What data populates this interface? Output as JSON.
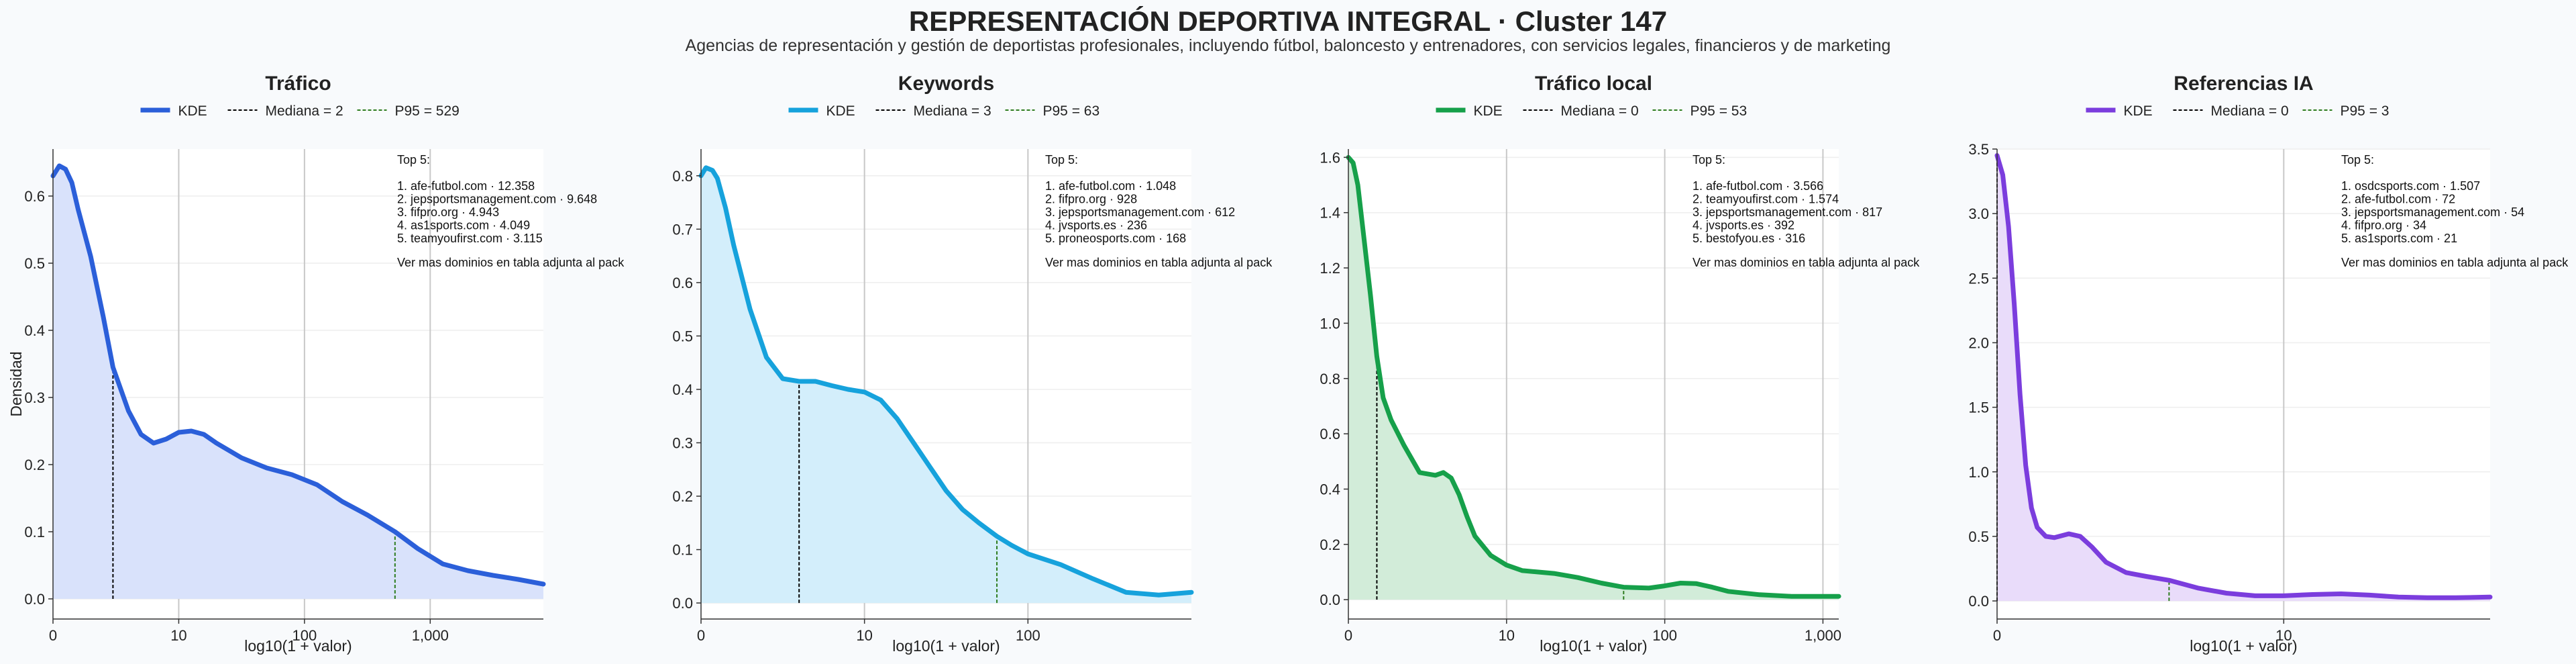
{
  "title": "REPRESENTACIÓN DEPORTIVA INTEGRAL · Cluster 147",
  "subtitle": "Agencias de representación y gestión de deportistas profesionales, incluyendo fútbol, baloncesto y entrenadores, con servicios legales, financieros y de marketing",
  "colors": {
    "panel_fill": "#ffffff",
    "grid": "#c8c8c8",
    "median_line": "#000000",
    "p95_line": "#2e7d1f"
  },
  "chart_data": [
    {
      "type": "area",
      "title": "Tráfico",
      "xlabel": "log10(1 + valor)",
      "ylabel": "Densidad",
      "color": "#2b5fd9",
      "fill": "#d9e2fb",
      "xlim": [
        0,
        3.9
      ],
      "ylim": [
        -0.03,
        0.67
      ],
      "xticks": [
        0,
        1,
        2,
        3
      ],
      "xticklabels": [
        "0",
        "10",
        "100",
        "1,000"
      ],
      "yticks": [
        0,
        0.1,
        0.2,
        0.3,
        0.4,
        0.5,
        0.6
      ],
      "yticklabels": [
        "0.0",
        "0.1",
        "0.2",
        "0.3",
        "0.4",
        "0.5",
        "0.6"
      ],
      "legend": {
        "kde": "KDE",
        "median": "Mediana = 2",
        "p95": "P95 = 529"
      },
      "median_x": 0.477,
      "p95_x": 2.72,
      "kde": {
        "x": [
          0,
          0.05,
          0.1,
          0.15,
          0.2,
          0.3,
          0.4,
          0.477,
          0.6,
          0.7,
          0.8,
          0.9,
          1.0,
          1.1,
          1.2,
          1.3,
          1.5,
          1.7,
          1.9,
          2.1,
          2.3,
          2.5,
          2.72,
          2.9,
          3.1,
          3.3,
          3.5,
          3.7,
          3.9
        ],
        "y": [
          0.63,
          0.645,
          0.64,
          0.62,
          0.58,
          0.51,
          0.42,
          0.345,
          0.28,
          0.245,
          0.232,
          0.238,
          0.248,
          0.25,
          0.245,
          0.232,
          0.21,
          0.195,
          0.185,
          0.17,
          0.145,
          0.125,
          0.1,
          0.075,
          0.052,
          0.042,
          0.035,
          0.029,
          0.022
        ]
      },
      "annotation": {
        "header": "Top 5:",
        "items": [
          "1. afe-futbol.com · 12.358",
          "2. jepsportsmanagement.com · 9.648",
          "3. fifpro.org · 4.943",
          "4. as1sports.com · 4.049",
          "5. teamyoufirst.com · 3.115"
        ],
        "footer": "Ver mas dominios en tabla adjunta al pack"
      }
    },
    {
      "type": "area",
      "title": "Keywords",
      "xlabel": "log10(1 + valor)",
      "ylabel": "",
      "color": "#16a2dc",
      "fill": "#d3eefb",
      "xlim": [
        0,
        3.0
      ],
      "ylim": [
        -0.03,
        0.85
      ],
      "xticks": [
        0,
        1,
        2
      ],
      "xticklabels": [
        "0",
        "10",
        "100"
      ],
      "yticks": [
        0,
        0.1,
        0.2,
        0.3,
        0.4,
        0.5,
        0.6,
        0.7,
        0.8
      ],
      "yticklabels": [
        "0.0",
        "0.1",
        "0.2",
        "0.3",
        "0.4",
        "0.5",
        "0.6",
        "0.7",
        "0.8"
      ],
      "legend": {
        "kde": "KDE",
        "median": "Mediana = 3",
        "p95": "P95 = 63"
      },
      "median_x": 0.6,
      "p95_x": 1.81,
      "kde": {
        "x": [
          0,
          0.03,
          0.07,
          0.1,
          0.15,
          0.2,
          0.3,
          0.4,
          0.5,
          0.6,
          0.7,
          0.8,
          0.9,
          1.0,
          1.1,
          1.2,
          1.3,
          1.4,
          1.5,
          1.6,
          1.7,
          1.81,
          1.9,
          2.0,
          2.2,
          2.4,
          2.6,
          2.8,
          3.0
        ],
        "y": [
          0.8,
          0.815,
          0.81,
          0.795,
          0.74,
          0.67,
          0.55,
          0.46,
          0.42,
          0.415,
          0.415,
          0.407,
          0.4,
          0.395,
          0.38,
          0.345,
          0.3,
          0.255,
          0.21,
          0.175,
          0.15,
          0.125,
          0.108,
          0.092,
          0.072,
          0.045,
          0.02,
          0.015,
          0.02
        ]
      },
      "annotation": {
        "header": "Top 5:",
        "items": [
          "1. afe-futbol.com · 1.048",
          "2. fifpro.org · 928",
          "3. jepsportsmanagement.com · 612",
          "4. jvsports.es · 236",
          "5. proneosports.com · 168"
        ],
        "footer": "Ver mas dominios en tabla adjunta al pack"
      }
    },
    {
      "type": "area",
      "title": "Tráfico local",
      "xlabel": "log10(1 + valor)",
      "ylabel": "",
      "color": "#16a04a",
      "fill": "#d2ecd9",
      "xlim": [
        0,
        3.1
      ],
      "ylim": [
        -0.07,
        1.63
      ],
      "xticks": [
        0,
        1,
        2,
        3
      ],
      "xticklabels": [
        "0",
        "10",
        "100",
        "1,000"
      ],
      "yticks": [
        0,
        0.2,
        0.4,
        0.6,
        0.8,
        1.0,
        1.2,
        1.4,
        1.6
      ],
      "yticklabels": [
        "0.0",
        "0.2",
        "0.4",
        "0.6",
        "0.8",
        "1.0",
        "1.2",
        "1.4",
        "1.6"
      ],
      "legend": {
        "kde": "KDE",
        "median": "Mediana = 0",
        "p95": "P95 = 53"
      },
      "median_x": 0.18,
      "p95_x": 1.74,
      "kde": {
        "x": [
          0,
          0.03,
          0.06,
          0.1,
          0.14,
          0.18,
          0.22,
          0.27,
          0.35,
          0.45,
          0.55,
          0.6,
          0.65,
          0.7,
          0.75,
          0.8,
          0.9,
          1.0,
          1.1,
          1.2,
          1.3,
          1.45,
          1.6,
          1.74,
          1.9,
          2.0,
          2.1,
          2.2,
          2.3,
          2.4,
          2.6,
          2.8,
          3.1
        ],
        "y": [
          1.6,
          1.58,
          1.5,
          1.3,
          1.1,
          0.88,
          0.73,
          0.65,
          0.56,
          0.46,
          0.45,
          0.46,
          0.44,
          0.38,
          0.3,
          0.23,
          0.16,
          0.125,
          0.105,
          0.1,
          0.095,
          0.08,
          0.06,
          0.045,
          0.042,
          0.05,
          0.06,
          0.058,
          0.045,
          0.03,
          0.018,
          0.012,
          0.012
        ]
      },
      "annotation": {
        "header": "Top 5:",
        "items": [
          "1. afe-futbol.com · 3.566",
          "2. teamyoufirst.com · 1.574",
          "3. jepsportsmanagement.com · 817",
          "4. jvsports.es · 392",
          "5. bestofyou.es · 316"
        ],
        "footer": "Ver mas dominios en tabla adjunta al pack"
      }
    },
    {
      "type": "area",
      "title": "Referencias IA",
      "xlabel": "log10(1 + valor)",
      "ylabel": "",
      "color": "#7b3ddd",
      "fill": "#e9dcfa",
      "xlim": [
        0,
        1.72
      ],
      "ylim": [
        -0.14,
        3.5
      ],
      "xticks": [
        0,
        1
      ],
      "xticklabels": [
        "0",
        "10"
      ],
      "yticks": [
        0,
        0.5,
        1.0,
        1.5,
        2.0,
        2.5,
        3.0,
        3.5
      ],
      "yticklabels": [
        "0.0",
        "0.5",
        "1.0",
        "1.5",
        "2.0",
        "2.5",
        "3.0",
        "3.5"
      ],
      "legend": {
        "kde": "KDE",
        "median": "Mediana = 0",
        "p95": "P95 = 3"
      },
      "median_x": 0.0,
      "p95_x": 0.6,
      "kde": {
        "x": [
          0,
          0.02,
          0.04,
          0.06,
          0.08,
          0.1,
          0.12,
          0.14,
          0.17,
          0.2,
          0.25,
          0.29,
          0.33,
          0.38,
          0.45,
          0.52,
          0.6,
          0.7,
          0.8,
          0.9,
          1.0,
          1.1,
          1.2,
          1.3,
          1.4,
          1.5,
          1.6,
          1.72
        ],
        "y": [
          3.45,
          3.3,
          2.9,
          2.3,
          1.6,
          1.05,
          0.72,
          0.57,
          0.5,
          0.49,
          0.52,
          0.5,
          0.42,
          0.3,
          0.22,
          0.19,
          0.16,
          0.1,
          0.06,
          0.04,
          0.04,
          0.05,
          0.055,
          0.045,
          0.03,
          0.025,
          0.025,
          0.03
        ]
      },
      "annotation": {
        "header": "Top 5:",
        "items": [
          "1. osdcsports.com · 1.507",
          "2. afe-futbol.com · 72",
          "3. jepsportsmanagement.com · 54",
          "4. fifpro.org · 34",
          "5. as1sports.com · 21"
        ],
        "footer": "Ver mas dominios en tabla adjunta al pack"
      }
    }
  ]
}
